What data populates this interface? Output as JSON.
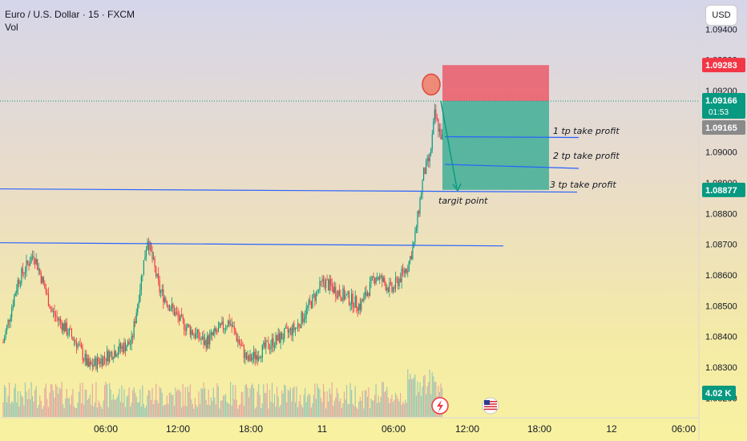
{
  "header": {
    "symbol": "Euro / U.S. Dollar · 15 · FXCM",
    "indicator": "Vol"
  },
  "currency_button": "USD",
  "price_axis": {
    "ticks": [
      "1.09400",
      "1.09300",
      "1.09200",
      "1.09000",
      "1.08900",
      "1.08800",
      "1.08700",
      "1.08600",
      "1.08500",
      "1.08400",
      "1.08300",
      "1.08200"
    ],
    "tick_values": [
      1.094,
      1.093,
      1.092,
      1.09,
      1.089,
      1.088,
      1.087,
      1.086,
      1.085,
      1.084,
      1.083,
      1.082
    ]
  },
  "price_labels": {
    "stop": {
      "text": "1.09283",
      "value": 1.09283,
      "color": "#f23645"
    },
    "current": {
      "text": "1.09166",
      "value": 1.09166,
      "color": "#089981"
    },
    "countdown": "01:53",
    "bid": {
      "text": "1.09165",
      "value": 1.09165,
      "color": "#8a8a8a"
    },
    "target": {
      "text": "1.08877",
      "value": 1.08877,
      "color": "#089981"
    },
    "volume": {
      "text": "4.02 K",
      "color": "#089981"
    }
  },
  "time_axis": {
    "labels": [
      "06:00",
      "12:00",
      "18:00",
      "11",
      "06:00",
      "12:00",
      "18:00",
      "12",
      "06:00"
    ]
  },
  "annotations": {
    "tp1": "1 tp take profit",
    "tp2": "2 tp take profit",
    "tp3": "3 tp take profit",
    "target": "targit point"
  },
  "colors": {
    "bull": "#089981",
    "bear": "#f23645",
    "risk_zone": "#eb5b6a",
    "reward_zone": "#3fae96",
    "trendline": "#2962ff"
  },
  "chart_data": {
    "type": "candlestick",
    "title": "Euro / U.S. Dollar · 15 · FXCM",
    "series": [
      {
        "name": "Vol",
        "type": "bar"
      }
    ],
    "levels": {
      "resistance_1": 1.08875,
      "resistance_2": 1.087,
      "stop_loss": 1.09283,
      "entry": 1.09166,
      "tp1": 1.0905,
      "tp2": 1.0896,
      "tp3": 1.08877
    },
    "ylim": [
      1.0815,
      1.0945
    ],
    "last_volume": "4.02 K"
  }
}
